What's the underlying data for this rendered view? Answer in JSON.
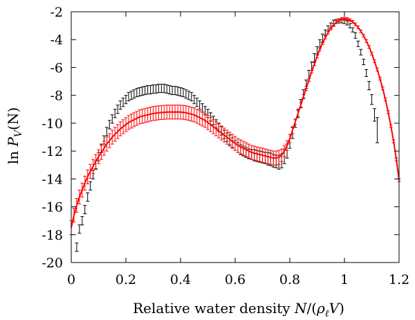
{
  "chart_data": {
    "type": "scatter",
    "title": "",
    "xlabel": "Relative water density N/(ρ_ℓV)",
    "ylabel": "ln P_V(N)",
    "xlabel_parts": {
      "prefix": "Relative water density ",
      "math_N": "N",
      "math_open": "/(",
      "math_rho": "ρ",
      "math_ell": "ℓ",
      "math_V": "V",
      "math_close": ")"
    },
    "ylabel_parts": {
      "prefix": "ln ",
      "math_P": "P",
      "math_sub": "V",
      "math_args": "(N)"
    },
    "xlim": [
      0,
      1.2
    ],
    "ylim": [
      -20,
      -2
    ],
    "xticks": [
      0,
      0.2,
      0.4,
      0.6,
      0.8,
      1,
      1.2
    ],
    "xtick_labels": [
      "0",
      "0.2",
      "0.4",
      "0.6",
      "0.8",
      "1",
      "1.2"
    ],
    "yticks": [
      -20,
      -18,
      -16,
      -14,
      -12,
      -10,
      -8,
      -6,
      -4,
      -2
    ],
    "ytick_labels": [
      "-20",
      "-18",
      "-16",
      "-14",
      "-12",
      "-10",
      "-8",
      "-6",
      "-4",
      "-2"
    ],
    "grid": false,
    "legend": "none",
    "series": [
      {
        "color": "#000000",
        "style": "errorbars",
        "points": [
          [
            0.02,
            -18.9,
            0.3
          ],
          [
            0.03,
            -17.6,
            0.3
          ],
          [
            0.04,
            -17.0,
            0.3
          ],
          [
            0.05,
            -16.2,
            0.3
          ],
          [
            0.06,
            -15.3,
            0.3
          ],
          [
            0.07,
            -14.5,
            0.3
          ],
          [
            0.08,
            -13.7,
            0.3
          ],
          [
            0.09,
            -13.0,
            0.3
          ],
          [
            0.1,
            -12.4,
            0.3
          ],
          [
            0.11,
            -11.8,
            0.3
          ],
          [
            0.12,
            -11.2,
            0.3
          ],
          [
            0.13,
            -10.6,
            0.3
          ],
          [
            0.14,
            -10.1,
            0.3
          ],
          [
            0.15,
            -9.7,
            0.3
          ],
          [
            0.16,
            -9.3,
            0.3
          ],
          [
            0.17,
            -9.0,
            0.3
          ],
          [
            0.18,
            -8.7,
            0.3
          ],
          [
            0.19,
            -8.5,
            0.3
          ],
          [
            0.2,
            -8.3,
            0.3
          ],
          [
            0.21,
            -8.1,
            0.3
          ],
          [
            0.22,
            -8.0,
            0.3
          ],
          [
            0.23,
            -7.9,
            0.3
          ],
          [
            0.24,
            -7.8,
            0.3
          ],
          [
            0.25,
            -7.75,
            0.3
          ],
          [
            0.26,
            -7.7,
            0.3
          ],
          [
            0.27,
            -7.65,
            0.3
          ],
          [
            0.28,
            -7.6,
            0.3
          ],
          [
            0.29,
            -7.6,
            0.3
          ],
          [
            0.3,
            -7.55,
            0.3
          ],
          [
            0.31,
            -7.55,
            0.3
          ],
          [
            0.32,
            -7.5,
            0.3
          ],
          [
            0.33,
            -7.5,
            0.3
          ],
          [
            0.34,
            -7.5,
            0.3
          ],
          [
            0.35,
            -7.55,
            0.3
          ],
          [
            0.36,
            -7.6,
            0.3
          ],
          [
            0.37,
            -7.65,
            0.3
          ],
          [
            0.38,
            -7.65,
            0.3
          ],
          [
            0.39,
            -7.7,
            0.3
          ],
          [
            0.4,
            -7.75,
            0.3
          ],
          [
            0.41,
            -7.8,
            0.3
          ],
          [
            0.42,
            -7.9,
            0.3
          ],
          [
            0.43,
            -8.0,
            0.3
          ],
          [
            0.44,
            -8.1,
            0.3
          ],
          [
            0.45,
            -8.3,
            0.3
          ],
          [
            0.46,
            -8.5,
            0.3
          ],
          [
            0.47,
            -8.7,
            0.3
          ],
          [
            0.48,
            -8.9,
            0.3
          ],
          [
            0.49,
            -9.1,
            0.3
          ],
          [
            0.5,
            -9.3,
            0.3
          ],
          [
            0.51,
            -9.55,
            0.3
          ],
          [
            0.52,
            -9.8,
            0.3
          ],
          [
            0.53,
            -10.05,
            0.3
          ],
          [
            0.54,
            -10.3,
            0.3
          ],
          [
            0.55,
            -10.55,
            0.3
          ],
          [
            0.56,
            -10.8,
            0.3
          ],
          [
            0.57,
            -11.0,
            0.3
          ],
          [
            0.58,
            -11.2,
            0.35
          ],
          [
            0.59,
            -11.4,
            0.35
          ],
          [
            0.6,
            -11.6,
            0.35
          ],
          [
            0.61,
            -11.75,
            0.35
          ],
          [
            0.62,
            -11.9,
            0.35
          ],
          [
            0.63,
            -12.0,
            0.35
          ],
          [
            0.64,
            -12.1,
            0.35
          ],
          [
            0.65,
            -12.2,
            0.35
          ],
          [
            0.66,
            -12.25,
            0.35
          ],
          [
            0.67,
            -12.3,
            0.4
          ],
          [
            0.68,
            -12.35,
            0.4
          ],
          [
            0.69,
            -12.4,
            0.4
          ],
          [
            0.7,
            -12.45,
            0.4
          ],
          [
            0.71,
            -12.5,
            0.4
          ],
          [
            0.72,
            -12.55,
            0.45
          ],
          [
            0.73,
            -12.6,
            0.45
          ],
          [
            0.74,
            -12.7,
            0.45
          ],
          [
            0.75,
            -12.75,
            0.45
          ],
          [
            0.76,
            -12.8,
            0.5
          ],
          [
            0.77,
            -12.7,
            0.5
          ],
          [
            0.78,
            -12.4,
            0.5
          ],
          [
            0.79,
            -12.0,
            0.5
          ],
          [
            0.8,
            -11.3,
            0.5
          ],
          [
            0.81,
            -10.7,
            0.4
          ],
          [
            0.82,
            -10.0,
            0.3
          ],
          [
            0.83,
            -9.3,
            0.3
          ],
          [
            0.84,
            -8.6,
            0.3
          ],
          [
            0.85,
            -7.9,
            0.3
          ],
          [
            0.86,
            -7.2,
            0.3
          ],
          [
            0.87,
            -6.5,
            0.3
          ],
          [
            0.88,
            -5.9,
            0.3
          ],
          [
            0.89,
            -5.3,
            0.3
          ],
          [
            0.9,
            -4.8,
            0.3
          ],
          [
            0.91,
            -4.3,
            0.3
          ],
          [
            0.92,
            -3.9,
            0.3
          ],
          [
            0.93,
            -3.5,
            0.2
          ],
          [
            0.94,
            -3.2,
            0.2
          ],
          [
            0.95,
            -3.0,
            0.2
          ],
          [
            0.96,
            -2.8,
            0.2
          ],
          [
            0.97,
            -2.7,
            0.15
          ],
          [
            0.98,
            -2.65,
            0.15
          ],
          [
            0.99,
            -2.65,
            0.15
          ],
          [
            1.0,
            -2.7,
            0.15
          ],
          [
            1.01,
            -2.8,
            0.15
          ],
          [
            1.02,
            -3.0,
            0.15
          ],
          [
            1.03,
            -3.3,
            0.15
          ],
          [
            1.04,
            -3.7,
            0.2
          ],
          [
            1.05,
            -4.3,
            0.2
          ],
          [
            1.06,
            -4.9,
            0.2
          ],
          [
            1.07,
            -5.6,
            0.2
          ],
          [
            1.08,
            -6.4,
            0.25
          ],
          [
            1.09,
            -7.3,
            0.3
          ],
          [
            1.1,
            -8.3,
            0.35
          ],
          [
            1.11,
            -9.4,
            0.45
          ],
          [
            1.12,
            -10.5,
            0.9
          ]
        ]
      },
      {
        "color": "#ff0000",
        "style": "line-with-errorbars",
        "points": [
          [
            0.0,
            -17.5,
            0.5
          ],
          [
            0.01,
            -16.6,
            0.5
          ],
          [
            0.02,
            -15.9,
            0.5
          ],
          [
            0.03,
            -15.3,
            0.5
          ],
          [
            0.04,
            -14.8,
            0.5
          ],
          [
            0.05,
            -14.3,
            0.5
          ],
          [
            0.06,
            -13.85,
            0.5
          ],
          [
            0.07,
            -13.45,
            0.5
          ],
          [
            0.08,
            -13.1,
            0.5
          ],
          [
            0.09,
            -12.75,
            0.5
          ],
          [
            0.1,
            -12.4,
            0.5
          ],
          [
            0.11,
            -12.1,
            0.5
          ],
          [
            0.12,
            -11.8,
            0.5
          ],
          [
            0.13,
            -11.5,
            0.5
          ],
          [
            0.14,
            -11.25,
            0.5
          ],
          [
            0.15,
            -11.0,
            0.5
          ],
          [
            0.16,
            -10.8,
            0.5
          ],
          [
            0.17,
            -10.6,
            0.5
          ],
          [
            0.18,
            -10.4,
            0.5
          ],
          [
            0.19,
            -10.25,
            0.5
          ],
          [
            0.2,
            -10.1,
            0.5
          ],
          [
            0.21,
            -9.95,
            0.5
          ],
          [
            0.22,
            -9.85,
            0.5
          ],
          [
            0.23,
            -9.75,
            0.5
          ],
          [
            0.24,
            -9.65,
            0.5
          ],
          [
            0.25,
            -9.55,
            0.5
          ],
          [
            0.26,
            -9.5,
            0.5
          ],
          [
            0.27,
            -9.45,
            0.5
          ],
          [
            0.28,
            -9.4,
            0.5
          ],
          [
            0.29,
            -9.35,
            0.5
          ],
          [
            0.3,
            -9.3,
            0.5
          ],
          [
            0.31,
            -9.28,
            0.5
          ],
          [
            0.32,
            -9.25,
            0.5
          ],
          [
            0.33,
            -9.23,
            0.5
          ],
          [
            0.34,
            -9.22,
            0.5
          ],
          [
            0.35,
            -9.2,
            0.5
          ],
          [
            0.36,
            -9.2,
            0.5
          ],
          [
            0.37,
            -9.2,
            0.5
          ],
          [
            0.38,
            -9.2,
            0.5
          ],
          [
            0.39,
            -9.2,
            0.5
          ],
          [
            0.4,
            -9.2,
            0.5
          ],
          [
            0.41,
            -9.22,
            0.5
          ],
          [
            0.42,
            -9.25,
            0.5
          ],
          [
            0.43,
            -9.3,
            0.5
          ],
          [
            0.44,
            -9.35,
            0.5
          ],
          [
            0.45,
            -9.4,
            0.5
          ],
          [
            0.46,
            -9.5,
            0.5
          ],
          [
            0.47,
            -9.6,
            0.5
          ],
          [
            0.48,
            -9.7,
            0.5
          ],
          [
            0.49,
            -9.8,
            0.5
          ],
          [
            0.5,
            -9.95,
            0.5
          ],
          [
            0.51,
            -10.1,
            0.5
          ],
          [
            0.52,
            -10.25,
            0.5
          ],
          [
            0.53,
            -10.4,
            0.5
          ],
          [
            0.54,
            -10.55,
            0.5
          ],
          [
            0.55,
            -10.7,
            0.5
          ],
          [
            0.56,
            -10.85,
            0.5
          ],
          [
            0.57,
            -11.0,
            0.5
          ],
          [
            0.58,
            -11.15,
            0.5
          ],
          [
            0.59,
            -11.3,
            0.5
          ],
          [
            0.6,
            -11.45,
            0.5
          ],
          [
            0.61,
            -11.6,
            0.5
          ],
          [
            0.62,
            -11.7,
            0.5
          ],
          [
            0.63,
            -11.8,
            0.5
          ],
          [
            0.64,
            -11.9,
            0.5
          ],
          [
            0.65,
            -12.0,
            0.5
          ],
          [
            0.66,
            -12.1,
            0.5
          ],
          [
            0.67,
            -12.15,
            0.5
          ],
          [
            0.68,
            -12.2,
            0.5
          ],
          [
            0.69,
            -12.25,
            0.5
          ],
          [
            0.7,
            -12.3,
            0.5
          ],
          [
            0.71,
            -12.35,
            0.5
          ],
          [
            0.72,
            -12.4,
            0.5
          ],
          [
            0.73,
            -12.45,
            0.5
          ],
          [
            0.74,
            -12.5,
            0.5
          ],
          [
            0.75,
            -12.5,
            0.5
          ],
          [
            0.76,
            -12.45,
            0.5
          ],
          [
            0.77,
            -12.3,
            0.45
          ],
          [
            0.78,
            -12.0,
            0.4
          ],
          [
            0.79,
            -11.6,
            0.35
          ],
          [
            0.8,
            -11.1,
            0.3
          ],
          [
            0.81,
            -10.5,
            0.25
          ],
          [
            0.82,
            -9.9,
            0.2
          ],
          [
            0.83,
            -9.3,
            0.2
          ],
          [
            0.84,
            -8.7,
            0.15
          ],
          [
            0.85,
            -8.1,
            0.15
          ],
          [
            0.86,
            -7.5,
            0.15
          ],
          [
            0.87,
            -6.9,
            0.1
          ],
          [
            0.88,
            -6.3,
            0.1
          ],
          [
            0.89,
            -5.75,
            0.1
          ],
          [
            0.9,
            -5.2,
            0.1
          ],
          [
            0.91,
            -4.7,
            0.1
          ],
          [
            0.92,
            -4.25,
            0.1
          ],
          [
            0.93,
            -3.85,
            0.1
          ],
          [
            0.94,
            -3.5,
            0.1
          ],
          [
            0.95,
            -3.2,
            0.1
          ],
          [
            0.96,
            -2.95,
            0.1
          ],
          [
            0.97,
            -2.75,
            0.1
          ],
          [
            0.98,
            -2.6,
            0.1
          ],
          [
            0.99,
            -2.52,
            0.1
          ],
          [
            1.0,
            -2.5,
            0.1
          ],
          [
            1.01,
            -2.52,
            0.1
          ],
          [
            1.02,
            -2.6,
            0.1
          ],
          [
            1.03,
            -2.72,
            0.1
          ],
          [
            1.04,
            -2.9,
            0.1
          ],
          [
            1.05,
            -3.12,
            0.1
          ],
          [
            1.06,
            -3.4,
            0.1
          ],
          [
            1.07,
            -3.72,
            0.1
          ],
          [
            1.08,
            -4.1,
            0.1
          ],
          [
            1.09,
            -4.52,
            0.1
          ],
          [
            1.1,
            -5.0,
            0.1
          ],
          [
            1.11,
            -5.55,
            0.1
          ],
          [
            1.12,
            -6.15,
            0.1
          ],
          [
            1.13,
            -6.8,
            0.1
          ],
          [
            1.14,
            -7.5,
            0.1
          ],
          [
            1.15,
            -8.3,
            0.1
          ],
          [
            1.16,
            -9.2,
            0.1
          ],
          [
            1.17,
            -10.2,
            0.1
          ],
          [
            1.18,
            -11.3,
            0.1
          ],
          [
            1.19,
            -12.6,
            0.1
          ],
          [
            1.2,
            -14.1,
            0.1
          ]
        ]
      }
    ]
  }
}
